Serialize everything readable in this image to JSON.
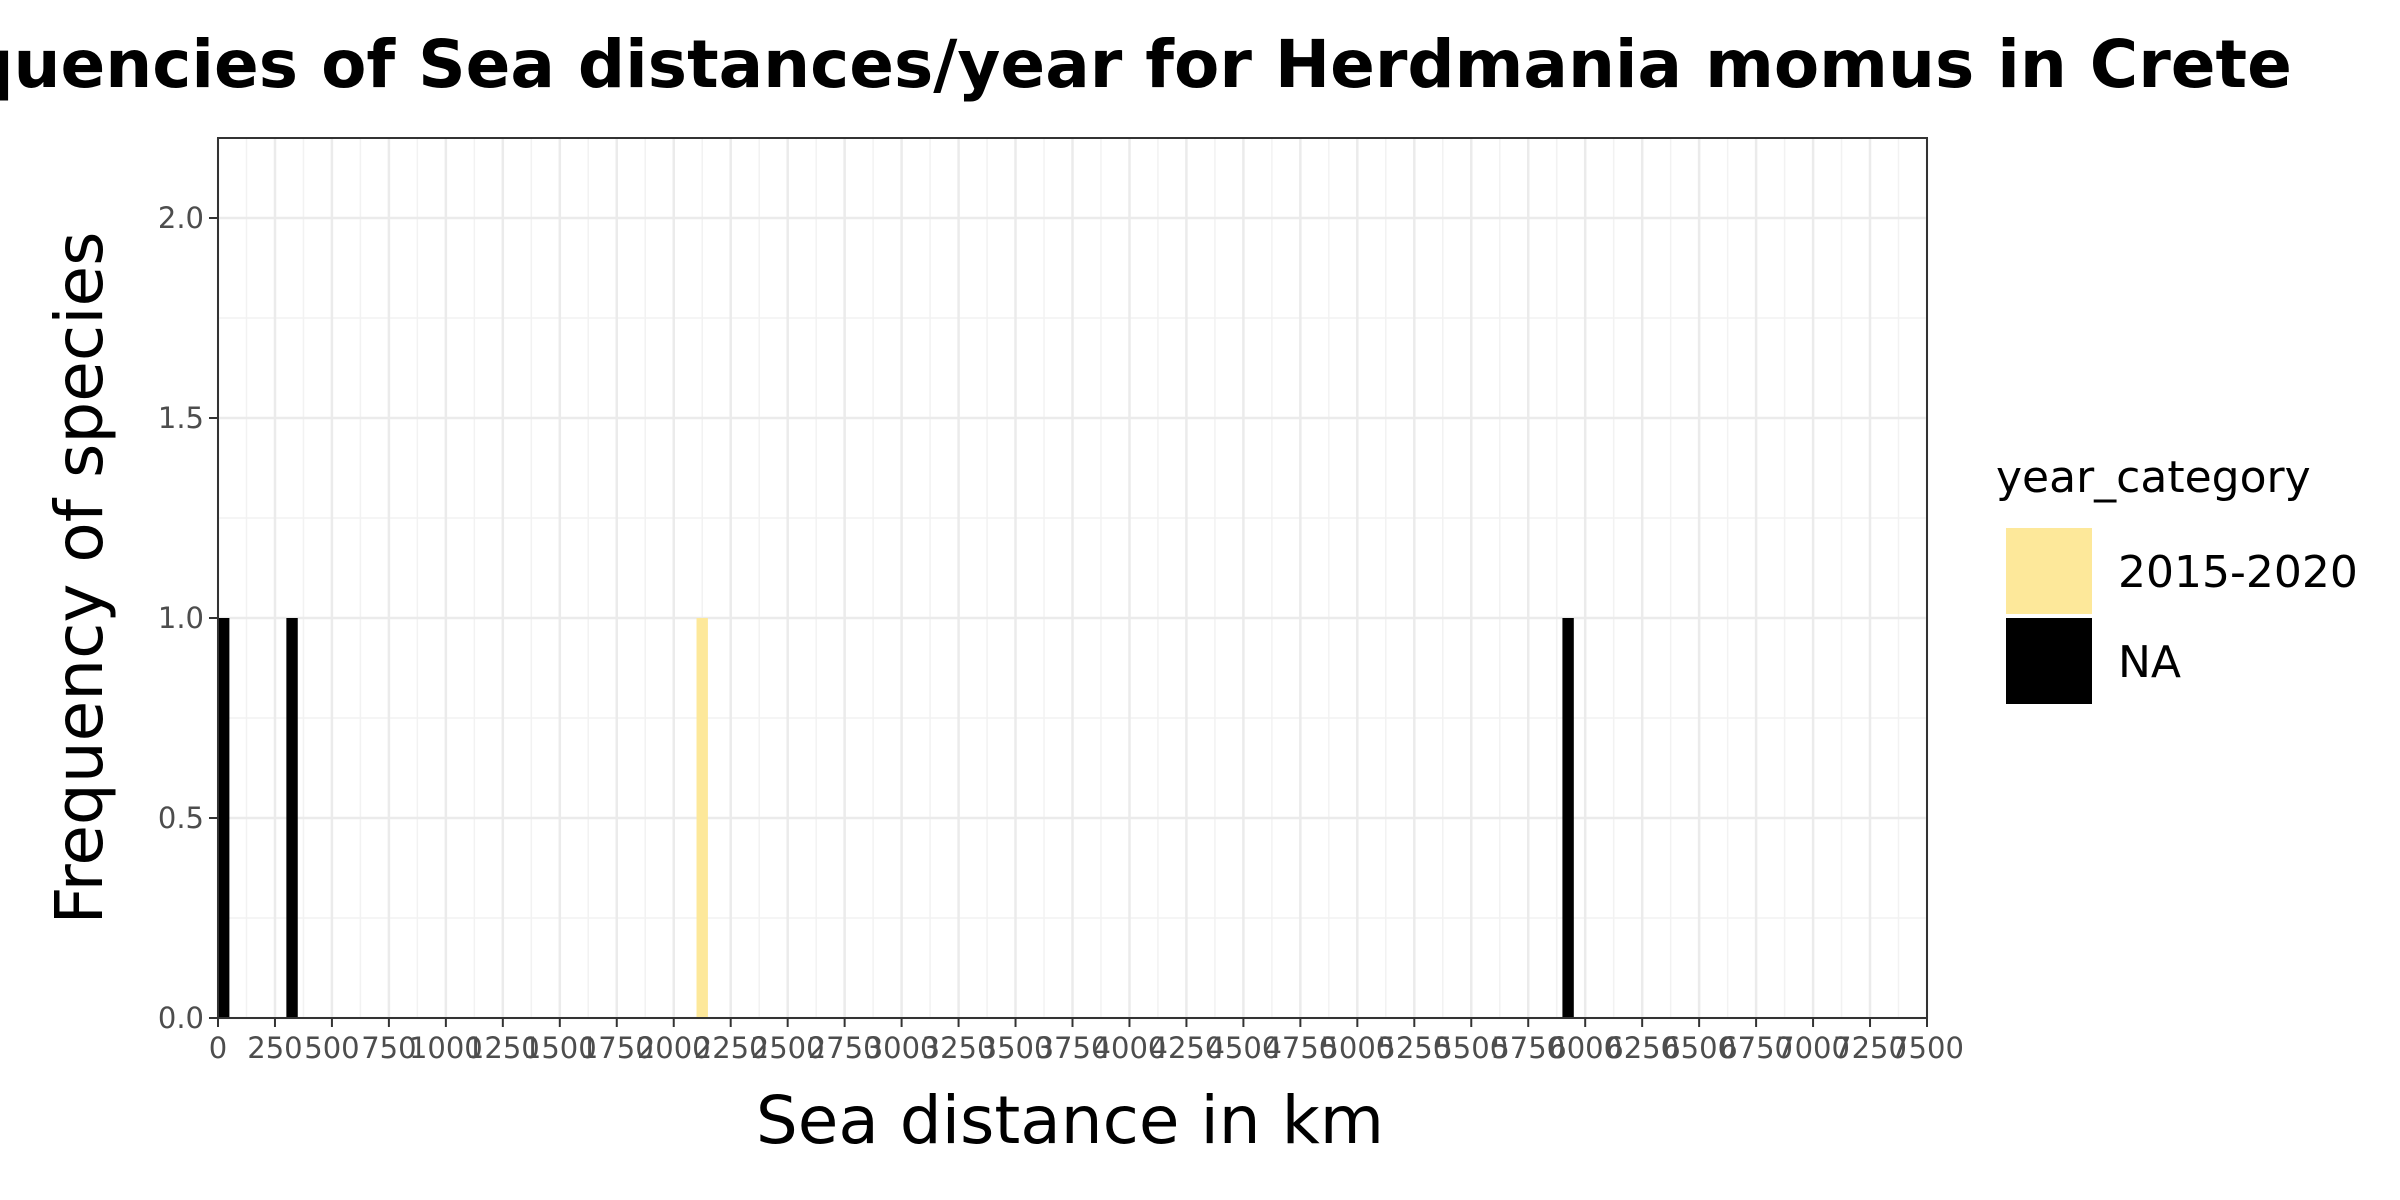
{
  "chart_data": {
    "type": "bar",
    "title": "Frequencies of Sea distances/year for Herdmania momus in Crete",
    "xlabel": "Sea distance in km",
    "ylabel": "Frequency of species",
    "xlim": [
      0,
      7500
    ],
    "ylim": [
      0,
      2.2
    ],
    "x_ticks": [
      0,
      250,
      500,
      750,
      1000,
      1250,
      1500,
      1750,
      2000,
      2250,
      2500,
      2750,
      3000,
      3250,
      3500,
      3750,
      4000,
      4250,
      4500,
      4750,
      5000,
      5250,
      5500,
      5750,
      6000,
      6250,
      6500,
      6750,
      7000,
      7250,
      7500
    ],
    "y_ticks": [
      0.0,
      0.5,
      1.0,
      1.5,
      2.0
    ],
    "y_tick_labels": [
      "0.0",
      "0.5",
      "1.0",
      "1.5",
      "2.0"
    ],
    "grid": true,
    "legend": {
      "title": "year_category",
      "placement": "right",
      "entries": [
        {
          "label": "2015-2020",
          "color": "#fde89a"
        },
        {
          "label": "NA",
          "color": "#000000"
        }
      ]
    },
    "series": [
      {
        "name": "2015-2020",
        "color": "#fde89a",
        "points": [
          {
            "x": 2125,
            "y": 1
          }
        ]
      },
      {
        "name": "NA",
        "color": "#000000",
        "points": [
          {
            "x": 25,
            "y": 1
          },
          {
            "x": 325,
            "y": 1
          },
          {
            "x": 5925,
            "y": 1
          }
        ]
      }
    ],
    "bin_width": 50
  }
}
